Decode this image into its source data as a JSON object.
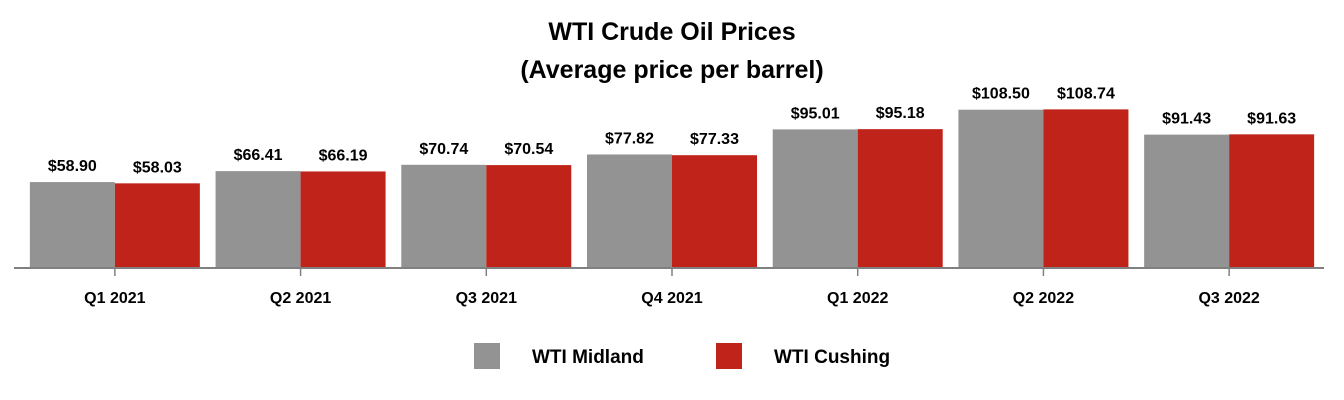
{
  "chart_data": {
    "type": "bar",
    "title": "WTI Crude Oil Prices",
    "subtitle": "(Average price per barrel)",
    "categories": [
      "Q1 2021",
      "Q2 2021",
      "Q3 2021",
      "Q4 2021",
      "Q1 2022",
      "Q2 2022",
      "Q3 2022"
    ],
    "series": [
      {
        "name": "WTI Midland",
        "color": "#939393",
        "values": [
          58.9,
          66.41,
          70.74,
          77.82,
          95.01,
          108.5,
          91.43
        ],
        "labels": [
          "$58.90",
          "$66.41",
          "$70.74",
          "$77.82",
          "$95.01",
          "$108.50",
          "$91.43"
        ]
      },
      {
        "name": "WTI Cushing",
        "color": "#c0231a",
        "values": [
          58.03,
          66.19,
          70.54,
          77.33,
          95.18,
          108.74,
          91.63
        ],
        "labels": [
          "$58.03",
          "$66.19",
          "$70.54",
          "$77.33",
          "$95.18",
          "$108.74",
          "$91.63"
        ]
      }
    ],
    "xlabel": "",
    "ylabel": "",
    "ylim": [
      0,
      170
    ],
    "grid": false,
    "legend_position": "bottom-center",
    "axis_color": "#808080"
  }
}
